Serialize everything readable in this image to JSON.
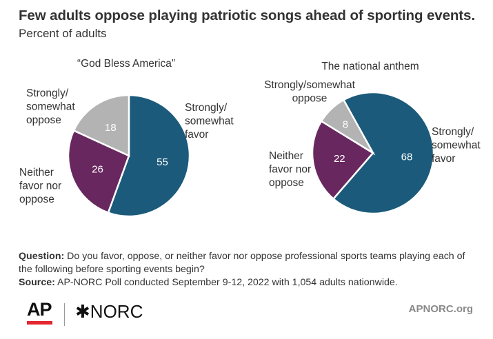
{
  "title": "Few adults oppose playing patriotic songs ahead of sporting events.",
  "subtitle": "Percent of adults",
  "colors": {
    "favor": "#1b5a7a",
    "neither": "#68285f",
    "oppose": "#b3b3b3",
    "logo_red": "#e3262f"
  },
  "chart_data": [
    {
      "type": "pie",
      "title": "“God Bless America”",
      "slices": [
        {
          "name": "favor",
          "label": [
            "Strongly/",
            "somewhat",
            "favor"
          ],
          "value": 55
        },
        {
          "name": "neither",
          "label": [
            "Neither",
            "favor nor",
            "oppose"
          ],
          "value": 26
        },
        {
          "name": "oppose",
          "label": [
            "Strongly/",
            "somewhat",
            "oppose"
          ],
          "value": 18
        }
      ]
    },
    {
      "type": "pie",
      "title": "The national anthem",
      "slices": [
        {
          "name": "favor",
          "label": [
            "Strongly/",
            "somewhat",
            "favor"
          ],
          "value": 68
        },
        {
          "name": "neither",
          "label": [
            "Neither",
            "favor nor",
            "oppose"
          ],
          "value": 22
        },
        {
          "name": "oppose",
          "label": [
            "Strongly/somewhat",
            "oppose"
          ],
          "value": 8
        }
      ]
    }
  ],
  "footnote": {
    "question_label": "Question:",
    "question_text": "Do you favor, oppose, or neither favor nor oppose professional sports teams playing each of the following before sporting events begin?",
    "source_label": "Source:",
    "source_text": "AP-NORC Poll conducted September 9-12, 2022 with 1,054 adults nationwide."
  },
  "logos": {
    "ap": "AP",
    "norc": "NORC",
    "norc_mark": "✱"
  },
  "site": "APNORC.org"
}
